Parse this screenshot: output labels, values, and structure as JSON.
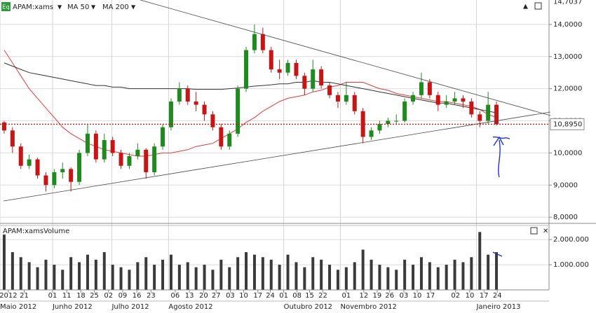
{
  "chart_data": {
    "type": "candlestick",
    "icon": "Eq",
    "symbol": "APAM:xams",
    "up_color": "#1f8a1f",
    "down_color": "#c81414",
    "ohlc": [
      [
        10.95,
        11.0,
        10.6,
        10.7
      ],
      [
        10.7,
        10.8,
        10.0,
        10.2
      ],
      [
        10.2,
        10.3,
        9.5,
        9.6
      ],
      [
        9.6,
        9.95,
        9.5,
        9.8
      ],
      [
        9.8,
        9.85,
        9.2,
        9.3
      ],
      [
        9.3,
        9.4,
        8.8,
        9.0
      ],
      [
        9.0,
        9.5,
        8.9,
        9.4
      ],
      [
        9.4,
        9.7,
        9.2,
        9.5
      ],
      [
        9.5,
        9.55,
        8.8,
        9.1
      ],
      [
        9.1,
        10.1,
        9.0,
        10.0
      ],
      [
        10.0,
        10.9,
        9.9,
        10.6
      ],
      [
        10.6,
        10.7,
        9.7,
        9.8
      ],
      [
        9.8,
        10.6,
        9.7,
        10.4
      ],
      [
        10.4,
        10.5,
        9.9,
        10.0
      ],
      [
        10.0,
        10.1,
        9.5,
        9.6
      ],
      [
        9.6,
        10.0,
        9.5,
        9.9
      ],
      [
        9.9,
        10.3,
        9.8,
        10.1
      ],
      [
        10.1,
        10.15,
        9.2,
        9.4
      ],
      [
        9.4,
        10.3,
        9.3,
        10.2
      ],
      [
        10.2,
        10.9,
        10.1,
        10.8
      ],
      [
        10.8,
        11.7,
        10.7,
        11.6
      ],
      [
        11.6,
        12.2,
        11.5,
        12.0
      ],
      [
        12.0,
        12.1,
        11.5,
        11.6
      ],
      [
        11.6,
        11.9,
        11.3,
        11.5
      ],
      [
        11.5,
        11.6,
        11.0,
        11.2
      ],
      [
        11.2,
        11.3,
        10.7,
        10.8
      ],
      [
        10.8,
        10.9,
        10.1,
        10.2
      ],
      [
        10.2,
        10.7,
        10.1,
        10.6
      ],
      [
        10.6,
        12.1,
        10.5,
        12.0
      ],
      [
        12.0,
        13.3,
        11.9,
        13.2
      ],
      [
        13.2,
        14.0,
        13.1,
        13.7
      ],
      [
        13.7,
        13.9,
        13.1,
        13.2
      ],
      [
        13.2,
        13.3,
        12.5,
        12.6
      ],
      [
        12.6,
        12.9,
        12.3,
        12.5
      ],
      [
        12.5,
        12.9,
        12.4,
        12.8
      ],
      [
        12.8,
        12.9,
        12.3,
        12.4
      ],
      [
        12.4,
        12.5,
        11.8,
        12.0
      ],
      [
        12.0,
        12.9,
        11.9,
        12.6
      ],
      [
        12.6,
        12.7,
        12.0,
        12.1
      ],
      [
        12.1,
        12.2,
        11.7,
        11.8
      ],
      [
        11.8,
        11.9,
        11.4,
        11.6
      ],
      [
        11.6,
        12.2,
        11.5,
        11.8
      ],
      [
        11.8,
        11.9,
        11.2,
        11.3
      ],
      [
        11.3,
        11.4,
        10.3,
        10.5
      ],
      [
        10.5,
        10.8,
        10.4,
        10.7
      ],
      [
        10.7,
        11.0,
        10.6,
        10.9
      ],
      [
        10.9,
        11.1,
        10.8,
        11.0
      ],
      [
        11.0,
        11.2,
        10.9,
        11.0
      ],
      [
        11.0,
        11.7,
        10.95,
        11.6
      ],
      [
        11.6,
        11.9,
        11.5,
        11.8
      ],
      [
        11.8,
        12.5,
        11.7,
        12.2
      ],
      [
        12.2,
        12.3,
        11.7,
        11.8
      ],
      [
        11.8,
        11.9,
        11.3,
        11.5
      ],
      [
        11.5,
        11.8,
        11.4,
        11.6
      ],
      [
        11.6,
        11.9,
        11.5,
        11.7
      ],
      [
        11.7,
        11.8,
        11.4,
        11.6
      ],
      [
        11.6,
        11.7,
        11.1,
        11.2
      ],
      [
        11.2,
        11.3,
        10.8,
        11.0
      ],
      [
        11.0,
        11.9,
        10.9,
        11.5
      ],
      [
        11.5,
        11.6,
        10.85,
        10.895
      ]
    ],
    "series": [
      {
        "name": "MA 50",
        "color": "#e23a3a",
        "values": [
          13.2,
          12.8,
          12.4,
          12.0,
          11.7,
          11.4,
          11.1,
          10.8,
          10.6,
          10.45,
          10.3,
          10.2,
          10.1,
          10.05,
          10.0,
          9.95,
          9.9,
          9.9,
          9.95,
          10.0,
          10.0,
          10.05,
          10.1,
          10.2,
          10.25,
          10.3,
          10.45,
          10.6,
          10.75,
          10.95,
          11.1,
          11.3,
          11.45,
          11.6,
          11.7,
          11.75,
          11.8,
          11.9,
          11.95,
          12.05,
          12.1,
          12.2,
          12.2,
          12.2,
          12.1,
          12.0,
          11.95,
          11.85,
          11.8,
          11.75,
          11.7,
          11.65,
          11.6,
          11.6,
          11.55,
          11.5,
          11.45,
          11.35,
          11.2,
          11.1
        ]
      },
      {
        "name": "MA 200",
        "color": "#333333",
        "values": [
          12.8,
          12.7,
          12.6,
          12.5,
          12.45,
          12.4,
          12.35,
          12.3,
          12.25,
          12.2,
          12.15,
          12.1,
          12.1,
          12.05,
          12.05,
          12.0,
          12.0,
          12.0,
          12.0,
          12.0,
          12.0,
          12.0,
          12.0,
          11.98,
          11.98,
          11.98,
          11.98,
          12.0,
          12.02,
          12.05,
          12.08,
          12.1,
          12.12,
          12.15,
          12.15,
          12.2,
          12.2,
          12.25,
          12.2,
          12.2,
          12.15,
          12.1,
          12.05,
          12.0,
          11.95,
          11.9,
          11.85,
          11.8,
          11.75,
          11.7,
          11.65,
          11.6,
          11.55,
          11.55,
          11.5,
          11.45,
          11.4,
          11.35,
          11.3,
          11.25
        ]
      }
    ],
    "ylim": [
      7.83,
      14.76
    ],
    "yticks": [
      {
        "value": 8,
        "label": "8,0000"
      },
      {
        "value": 9,
        "label": "9,0000"
      },
      {
        "value": 10,
        "label": "10,0000"
      },
      {
        "value": 11,
        "label": "11,0000"
      },
      {
        "value": 12,
        "label": "12,0000"
      },
      {
        "value": 13,
        "label": "13,0000"
      },
      {
        "value": 14,
        "label": "14,0000"
      }
    ],
    "top_value": {
      "value": 14.7037,
      "label": "14,7037"
    },
    "last_price": {
      "value": 10.895,
      "label": "10,8950",
      "color": "#d01010"
    },
    "grid": true,
    "xlim": [
      0,
      60
    ],
    "xticks": [
      {
        "value": 1.0,
        "label": "2012"
      },
      {
        "value": 2.9,
        "label": "21"
      },
      {
        "value": 6.3,
        "label": "01"
      },
      {
        "value": 8.0,
        "label": "11"
      },
      {
        "value": 9.7,
        "label": "18"
      },
      {
        "value": 11.3,
        "label": "25"
      },
      {
        "value": 13.0,
        "label": "02"
      },
      {
        "value": 14.7,
        "label": "09"
      },
      {
        "value": 16.4,
        "label": "16"
      },
      {
        "value": 18.1,
        "label": "23"
      },
      {
        "value": 21.0,
        "label": "06"
      },
      {
        "value": 22.7,
        "label": "13"
      },
      {
        "value": 24.4,
        "label": "20"
      },
      {
        "value": 25.9,
        "label": "27"
      },
      {
        "value": 27.6,
        "label": "03"
      },
      {
        "value": 29.2,
        "label": "10"
      },
      {
        "value": 30.9,
        "label": "17"
      },
      {
        "value": 32.4,
        "label": "24"
      },
      {
        "value": 34.0,
        "label": "01"
      },
      {
        "value": 35.6,
        "label": "08"
      },
      {
        "value": 37.1,
        "label": "15"
      },
      {
        "value": 38.7,
        "label": "22"
      },
      {
        "value": 41.5,
        "label": "01"
      },
      {
        "value": 43.6,
        "label": "12"
      },
      {
        "value": 45.2,
        "label": "19"
      },
      {
        "value": 46.7,
        "label": "26"
      },
      {
        "value": 48.4,
        "label": "03"
      },
      {
        "value": 50.0,
        "label": "10"
      },
      {
        "value": 51.6,
        "label": "17"
      },
      {
        "value": 54.6,
        "label": "02"
      },
      {
        "value": 56.3,
        "label": "10"
      },
      {
        "value": 58.0,
        "label": "17"
      },
      {
        "value": 59.6,
        "label": "24"
      }
    ],
    "month_ticks": [
      {
        "value": 0,
        "label": "Maio 2012"
      },
      {
        "value": 6.3,
        "label": "Junho 2012"
      },
      {
        "value": 13.4,
        "label": "Julho 2012"
      },
      {
        "value": 20.2,
        "label": "Agosto 2012"
      },
      {
        "value": 34.0,
        "label": "Outubro 2012"
      },
      {
        "value": 40.8,
        "label": "Novembro 2012"
      },
      {
        "value": 57.1,
        "label": "Janeiro 2013"
      }
    ],
    "volume": {
      "title": "APAM:xamsVolume",
      "color": "#3a3a3a",
      "values": [
        2200000,
        1500000,
        1300000,
        1100000,
        900000,
        1200000,
        1000000,
        800000,
        1300000,
        1100000,
        1400000,
        1200000,
        1500000,
        1000000,
        900000,
        800000,
        1100000,
        1300000,
        1000000,
        1200000,
        1400000,
        1000000,
        1100000,
        900000,
        1000000,
        800000,
        1200000,
        900000,
        1300000,
        1500000,
        1400000,
        1300000,
        1200000,
        1000000,
        1400000,
        1100000,
        900000,
        1300000,
        1200000,
        1000000,
        800000,
        900000,
        1100000,
        1600000,
        1200000,
        1000000,
        900000,
        800000,
        1200000,
        1000000,
        1300000,
        1100000,
        900000,
        1000000,
        1200000,
        1100000,
        1300000,
        2300000,
        1400000,
        1500000
      ],
      "ylim": [
        0,
        2560000
      ],
      "yticks": [
        {
          "value": 1000000,
          "label": "1.000.000"
        },
        {
          "value": 2000000,
          "label": "2.000.000"
        }
      ]
    }
  }
}
